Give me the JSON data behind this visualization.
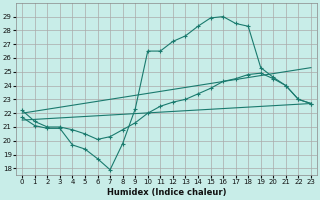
{
  "xlabel": "Humidex (Indice chaleur)",
  "background_color": "#c8ede8",
  "grid_color": "#b0d8d2",
  "line_color": "#1a7a6e",
  "xlim": [
    -0.5,
    23.5
  ],
  "ylim": [
    17.5,
    30.0
  ],
  "xtick_labels": [
    "0",
    "1",
    "2",
    "3",
    "4",
    "5",
    "6",
    "7",
    "8",
    "9",
    "10",
    "11",
    "12",
    "13",
    "14",
    "15",
    "16",
    "17",
    "18",
    "19",
    "20",
    "21",
    "22",
    "23"
  ],
  "yticks": [
    18,
    19,
    20,
    21,
    22,
    23,
    24,
    25,
    26,
    27,
    28,
    29
  ],
  "series1_x": [
    0,
    1,
    2,
    3,
    4,
    5,
    6,
    7,
    8,
    9,
    10,
    11,
    12,
    13,
    14,
    15,
    16,
    17,
    18,
    19,
    20,
    21,
    22,
    23
  ],
  "series1_y": [
    21.7,
    21.1,
    20.9,
    20.9,
    19.7,
    19.4,
    18.7,
    17.9,
    19.8,
    22.3,
    26.5,
    26.5,
    27.2,
    27.6,
    28.3,
    28.9,
    29.0,
    28.5,
    28.3,
    25.3,
    24.6,
    24.0,
    23.0,
    22.7
  ],
  "series2_x": [
    0,
    1,
    2,
    3,
    4,
    5,
    6,
    7,
    8,
    9,
    10,
    11,
    12,
    13,
    14,
    15,
    16,
    17,
    18,
    19,
    20,
    21,
    22,
    23
  ],
  "series2_y": [
    22.2,
    21.4,
    21.0,
    21.0,
    20.8,
    20.5,
    20.1,
    20.3,
    20.8,
    21.3,
    22.0,
    22.5,
    22.8,
    23.0,
    23.4,
    23.8,
    24.3,
    24.5,
    24.8,
    24.9,
    24.5,
    24.0,
    23.0,
    22.7
  ],
  "line3_x": [
    0,
    23
  ],
  "line3_y": [
    21.5,
    22.7
  ],
  "line4_x": [
    0,
    23
  ],
  "line4_y": [
    22.0,
    25.3
  ]
}
